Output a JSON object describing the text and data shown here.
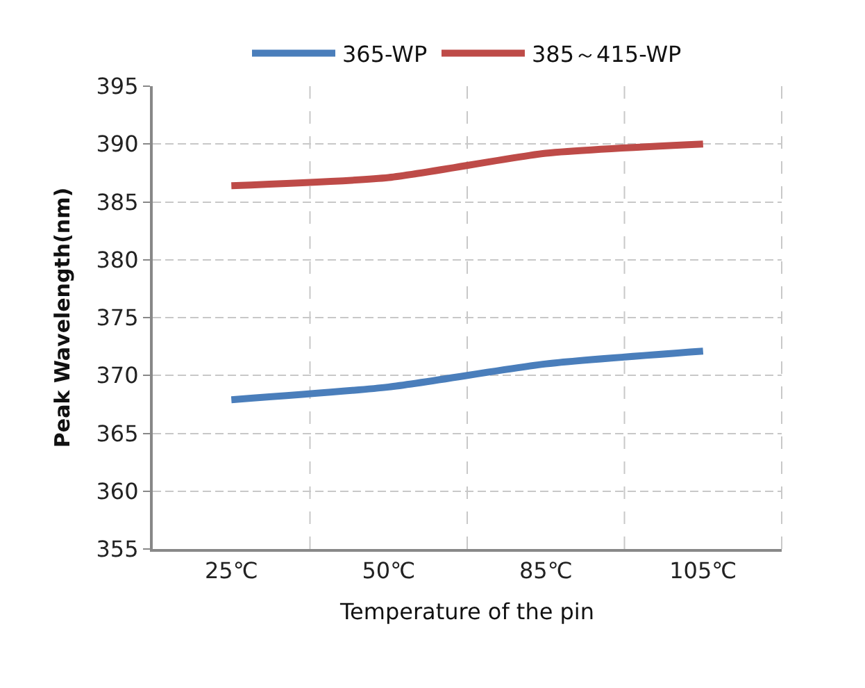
{
  "chart_data": {
    "type": "line",
    "xlabel": "Temperature of the pin",
    "ylabel": "Peak Wavelength(nm)",
    "categories": [
      "25℃",
      "50℃",
      "85℃",
      "105℃"
    ],
    "series": [
      {
        "name": "365-WP",
        "color": "#4a7ebb",
        "values": [
          367.9,
          369.0,
          371.0,
          372.1
        ]
      },
      {
        "name": "385～415-WP",
        "color": "#be4b48",
        "values": [
          386.4,
          387.1,
          389.2,
          390.0
        ]
      }
    ],
    "ylim": [
      355,
      395
    ],
    "yticks": [
      355,
      360,
      365,
      370,
      375,
      380,
      385,
      390,
      395
    ],
    "grid": true,
    "legend": "top",
    "marker": "none",
    "line_style": "solid"
  }
}
